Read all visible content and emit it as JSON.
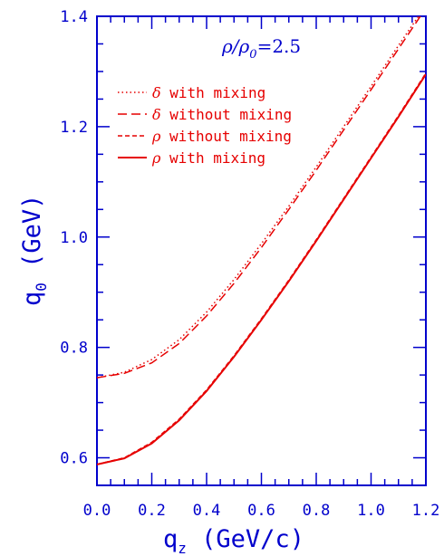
{
  "chart_data": {
    "type": "line",
    "xlabel_main": "q",
    "xlabel_sub": "z",
    "xlabel_rest": " (GeV/c)",
    "ylabel_main": "q",
    "ylabel_sub": "0",
    "ylabel_rest": " (GeV)",
    "annotation": {
      "rho1": "ρ",
      "slash": "/",
      "rho2": "ρ",
      "sub": "0",
      "eq": "=2.5"
    },
    "xlim": [
      0.0,
      1.2
    ],
    "ylim": [
      0.55,
      1.4
    ],
    "x_ticks": [
      "0.0",
      "0.2",
      "0.4",
      "0.6",
      "0.8",
      "1.0",
      "1.2"
    ],
    "y_ticks": [
      "0.6",
      "0.8",
      "1.0",
      "1.2",
      "1.4"
    ],
    "x_tick_values": [
      0.0,
      0.2,
      0.4,
      0.6,
      0.8,
      1.0,
      1.2
    ],
    "y_tick_values": [
      0.6,
      0.8,
      1.0,
      1.2,
      1.4
    ],
    "legend_position": "top-left",
    "colors": {
      "axes": "#0000cc",
      "series": "#e60000"
    },
    "series": [
      {
        "greek": "δ",
        "label": " with mixing",
        "dash": "dotted",
        "x": [
          0.0,
          0.1,
          0.2,
          0.3,
          0.4,
          0.5,
          0.6,
          0.7,
          0.8,
          0.9,
          1.0,
          1.1,
          1.2
        ],
        "y": [
          0.745,
          0.755,
          0.778,
          0.814,
          0.864,
          0.923,
          0.988,
          1.056,
          1.127,
          1.2,
          1.273,
          1.347,
          1.42
        ]
      },
      {
        "greek": "δ",
        "label": " without mixing",
        "dash": "longdash",
        "x": [
          0.0,
          0.1,
          0.2,
          0.3,
          0.4,
          0.5,
          0.6,
          0.7,
          0.8,
          0.9,
          1.0,
          1.1,
          1.2
        ],
        "y": [
          0.745,
          0.753,
          0.772,
          0.807,
          0.857,
          0.916,
          0.981,
          1.05,
          1.121,
          1.194,
          1.267,
          1.341,
          1.415
        ]
      },
      {
        "greek": "ρ",
        "label": " without mixing",
        "dash": "shortdash",
        "x": [
          0.0,
          0.1,
          0.2,
          0.3,
          0.4,
          0.5,
          0.6,
          0.7,
          0.8,
          0.9,
          1.0,
          1.1,
          1.2
        ],
        "y": [
          0.588,
          0.6,
          0.628,
          0.67,
          0.723,
          0.785,
          0.852,
          0.922,
          0.995,
          1.07,
          1.145,
          1.22,
          1.297
        ]
      },
      {
        "greek": "ρ",
        "label": " with mixing",
        "dash": "solid",
        "x": [
          0.0,
          0.1,
          0.2,
          0.3,
          0.4,
          0.5,
          0.6,
          0.7,
          0.8,
          0.9,
          1.0,
          1.1,
          1.2
        ],
        "y": [
          0.588,
          0.599,
          0.626,
          0.668,
          0.721,
          0.783,
          0.85,
          0.92,
          0.993,
          1.068,
          1.143,
          1.218,
          1.295
        ]
      }
    ]
  }
}
